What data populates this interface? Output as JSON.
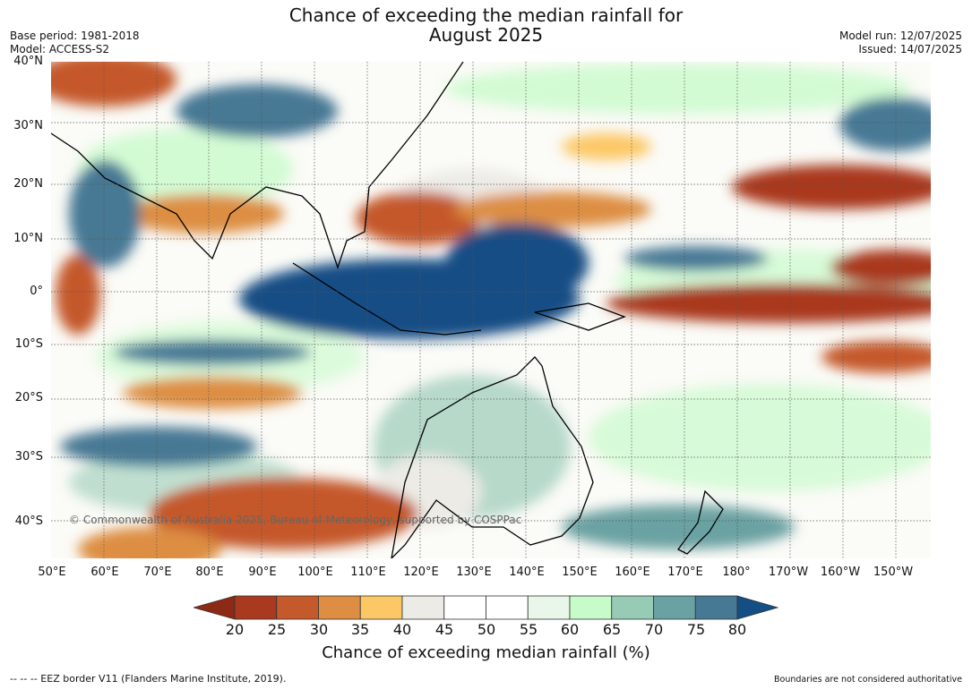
{
  "header": {
    "title_line1": "Chance of exceeding the median rainfall for",
    "title_line2": "August 2025",
    "base_period": "Base period: 1981-2018",
    "model": "Model: ACCESS-S2",
    "model_run": "Model run: 12/07/2025",
    "issued": "Issued: 14/07/2025"
  },
  "map": {
    "lat_labels": [
      "40°N",
      "30°N",
      "20°N",
      "10°N",
      "0°",
      "10°S",
      "20°S",
      "30°S",
      "40°S"
    ],
    "lon_labels": [
      "50°E",
      "60°E",
      "70°E",
      "80°E",
      "90°E",
      "100°E",
      "110°E",
      "120°E",
      "130°E",
      "140°E",
      "150°E",
      "160°E",
      "170°E",
      "180°",
      "170°W",
      "160°W",
      "150°W"
    ],
    "copyright": "© Commonwealth of Australia 2025, Bureau of Meteorology, supported by COSPPac"
  },
  "colorbar": {
    "ticks": [
      "20",
      "25",
      "30",
      "35",
      "40",
      "45",
      "50",
      "55",
      "60",
      "65",
      "70",
      "75",
      "80"
    ],
    "colors": [
      "#a9391f",
      "#c4592c",
      "#dd8e43",
      "#fcc866",
      "#ecebe6",
      "#ffffff",
      "#ffffff",
      "#e9f7ea",
      "#c8fbca",
      "#98cbb6",
      "#6aa1a2",
      "#477894"
    ],
    "low_arrow_color": "#8c2a15",
    "high_arrow_color": "#134e85",
    "label": "Chance of exceeding median rainfall (%)"
  },
  "footer": {
    "eez_note": "--  --  -- EEZ border V11 (Flanders Marine Institute, 2019).",
    "disclaimer": "Boundaries are not considered authoritative"
  }
}
